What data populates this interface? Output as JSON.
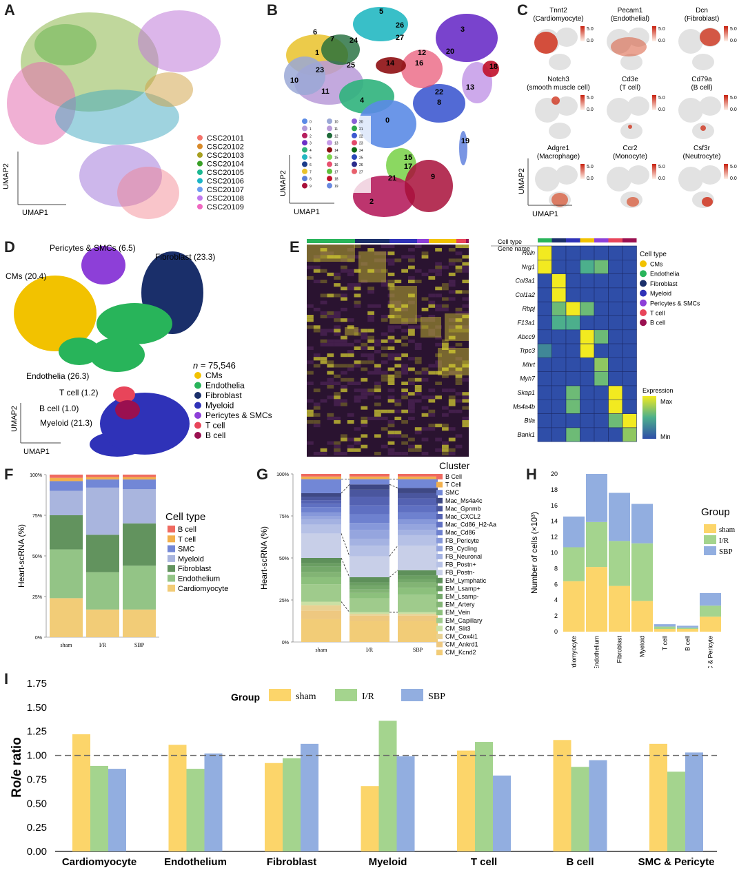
{
  "panel_labels": {
    "A": "A",
    "B": "B",
    "C": "C",
    "D": "D",
    "E": "E",
    "F": "F",
    "G": "G",
    "H": "H",
    "I": "I"
  },
  "axes": {
    "umap1": "UMAP1",
    "umap2": "UMAP2"
  },
  "panelA": {
    "legend": [
      {
        "label": "CSC20101",
        "color": "#f4736b"
      },
      {
        "label": "CSC20102",
        "color": "#d88a2a"
      },
      {
        "label": "CSC20103",
        "color": "#a8a020"
      },
      {
        "label": "CSC20104",
        "color": "#3aa028"
      },
      {
        "label": "CSC20105",
        "color": "#1cb892"
      },
      {
        "label": "CSC20106",
        "color": "#1bb5c6"
      },
      {
        "label": "CSC20107",
        "color": "#6b9cf0"
      },
      {
        "label": "CSC20108",
        "color": "#c178ee"
      },
      {
        "label": "CSC20109",
        "color": "#f068c0"
      }
    ]
  },
  "panelB": {
    "cluster_labels": [
      "0",
      "1",
      "2",
      "3",
      "4",
      "5",
      "6",
      "7",
      "8",
      "9",
      "10",
      "11",
      "12",
      "13",
      "14",
      "15",
      "16",
      "17",
      "18",
      "19",
      "20",
      "21",
      "22",
      "23",
      "24",
      "25",
      "26",
      "27"
    ],
    "legend_colors": [
      "#5b8be6",
      "#b39ad8",
      "#b61f5e",
      "#6a2fc8",
      "#2fb27c",
      "#24b8c2",
      "#1c3d8a",
      "#e9c22a",
      "#5b7fd8",
      "#a80f3a",
      "#9aa8d6",
      "#b99ad8",
      "#1f6b3a",
      "#c49ae8",
      "#8e0e12",
      "#7ed450",
      "#e85070",
      "#5ec03c",
      "#c0102a",
      "#6a8ae0",
      "#8a5fd6",
      "#2ea64c",
      "#3f5ad0",
      "#e24a6a",
      "#0e6b14",
      "#2948b8",
      "#2c2c8c",
      "#e8606c"
    ]
  },
  "panelC": {
    "genes": [
      {
        "gene": "Tnnt2",
        "cell": "(Cardiomyocyte)"
      },
      {
        "gene": "Pecam1",
        "cell": "(Endothelial)"
      },
      {
        "gene": "Dcn",
        "cell": "(Fibroblast)"
      },
      {
        "gene": "Notch3",
        "cell": "(smooth muscle cell)"
      },
      {
        "gene": "Cd3e",
        "cell": "(T cell)"
      },
      {
        "gene": "Cd79a",
        "cell": "(B cell)"
      },
      {
        "gene": "Adgre1",
        "cell": "(Macrophage)"
      },
      {
        "gene": "Ccr2",
        "cell": "(Monocyte)"
      },
      {
        "gene": "Csf3r",
        "cell": "(Neutrocyte)"
      }
    ],
    "scale_max": "5.0",
    "scale_min": "0.0"
  },
  "panelD": {
    "n_label": "n",
    "n_value": " = 75,546",
    "labels": {
      "cms": "CMs (20.4)",
      "pericytes": "Pericytes & SMCs (6.5)",
      "fibroblast": "Fibroblast (23.3)",
      "endothelia": "Endothelia (26.3)",
      "tcell": "T cell (1.2)",
      "bcell": "B cell (1.0)",
      "myeloid": "Myeloid (21.3)"
    },
    "legend": [
      {
        "label": "CMs",
        "color": "#f2c200"
      },
      {
        "label": "Endothelia",
        "color": "#28b45a"
      },
      {
        "label": "Fibroblast",
        "color": "#1a2f6a"
      },
      {
        "label": "Myeloid",
        "color": "#2f32b8"
      },
      {
        "label": "Pericytes & SMCs",
        "color": "#8d3fd8"
      },
      {
        "label": "T cell",
        "color": "#e8455a"
      },
      {
        "label": "B cell",
        "color": "#9a1050"
      }
    ]
  },
  "panelE": {
    "cell_type_header": "Cell type",
    "gene_name_header": "Gene name",
    "genes": [
      "Reln",
      "Nrg1",
      "Col3a1",
      "Col1a2",
      "Rbpj",
      "F13a1",
      "Abcc9",
      "Trpc3",
      "Mhrt",
      "Myh7",
      "Skap1",
      "Ms4a4b",
      "Btla",
      "Bank1"
    ],
    "legend_title": "Cell type",
    "legend": [
      {
        "label": "CMs",
        "color": "#f2c200"
      },
      {
        "label": "Endothelia",
        "color": "#28b45a"
      },
      {
        "label": "Fibroblast",
        "color": "#1a2f6a"
      },
      {
        "label": "Myeloid",
        "color": "#2f32b8"
      },
      {
        "label": "Pericytes & SMCs",
        "color": "#8d3fd8"
      },
      {
        "label": "T cell",
        "color": "#e8455a"
      },
      {
        "label": "B cell",
        "color": "#9a1050"
      }
    ],
    "expression_title": "Expression",
    "expr_max": "Max",
    "expr_min": "Min",
    "matrix": [
      [
        1,
        0,
        0,
        0,
        0,
        0,
        0
      ],
      [
        1,
        0,
        0,
        0.5,
        0.6,
        0,
        0
      ],
      [
        0,
        1,
        0,
        0,
        0,
        0,
        0
      ],
      [
        0,
        1,
        0,
        0,
        0,
        0,
        0
      ],
      [
        0,
        0.6,
        1,
        0.6,
        0,
        0,
        0
      ],
      [
        0,
        0.5,
        0.5,
        0,
        0,
        0,
        0
      ],
      [
        0,
        0,
        0,
        1,
        0.6,
        0,
        0
      ],
      [
        0.3,
        0,
        0,
        1,
        0,
        0,
        0
      ],
      [
        0,
        0,
        0,
        0,
        0.7,
        0,
        0
      ],
      [
        0,
        0,
        0,
        0,
        0.6,
        0,
        0
      ],
      [
        0,
        0,
        0.6,
        0,
        0,
        1,
        0
      ],
      [
        0,
        0,
        0.6,
        0,
        0,
        1,
        0
      ],
      [
        0,
        0,
        0,
        0,
        0,
        0.6,
        1
      ],
      [
        0,
        0,
        0.6,
        0,
        0,
        0,
        0.7
      ]
    ]
  },
  "chart_data": [
    {
      "id": "F",
      "type": "bar",
      "stacked": true,
      "title": "",
      "ylabel": "Heart-scRNA (%)",
      "xlabel": "",
      "categories": [
        "sham",
        "I/R",
        "SBP"
      ],
      "yticks": [
        "0%",
        "25%",
        "50%",
        "75%",
        "100%"
      ],
      "legend_title": "Cell type",
      "series": [
        {
          "name": "Cardiomyocyte",
          "color": "#f2cc77",
          "values": [
            24,
            17,
            17
          ]
        },
        {
          "name": "Endothelium",
          "color": "#93c486",
          "values": [
            30,
            23,
            27
          ]
        },
        {
          "name": "Fibroblast",
          "color": "#62935e",
          "values": [
            21,
            23,
            26
          ]
        },
        {
          "name": "Myeloid",
          "color": "#a9b5de",
          "values": [
            15,
            29,
            21
          ]
        },
        {
          "name": "SMC",
          "color": "#7287d6",
          "values": [
            6,
            5,
            6
          ]
        },
        {
          "name": "T cell",
          "color": "#f2b04c",
          "values": [
            2,
            1.5,
            1.5
          ]
        },
        {
          "name": "B cell",
          "color": "#ef6a60",
          "values": [
            2,
            1.5,
            1.5
          ]
        }
      ],
      "legend_order": [
        "B cell",
        "T cell",
        "SMC",
        "Myeloid",
        "Fibroblast",
        "Endothelium",
        "Cardiomyocyte"
      ]
    },
    {
      "id": "G",
      "type": "bar",
      "stacked": true,
      "title": "",
      "ylabel": "Heart-scRNA (%)",
      "xlabel": "",
      "categories": [
        "sham",
        "I/R",
        "SBP"
      ],
      "yticks": [
        "0%",
        "25%",
        "50%",
        "75%",
        "100%"
      ],
      "legend_title": "Cluster",
      "series": [
        {
          "name": "CM_Kcnd2",
          "color": "#f2cc77",
          "values": [
            13,
            12,
            12
          ]
        },
        {
          "name": "CM_Ankrd1",
          "color": "#eec880",
          "values": [
            5,
            3,
            3
          ]
        },
        {
          "name": "CM_Cox4i1",
          "color": "#e9d192",
          "values": [
            3,
            1,
            1
          ]
        },
        {
          "name": "CM_Slit3",
          "color": "#cbe0a4",
          "values": [
            2,
            1,
            1
          ]
        },
        {
          "name": "EM_Capillary",
          "color": "#9fcb8c",
          "values": [
            10,
            8,
            10
          ]
        },
        {
          "name": "EM_Vein",
          "color": "#8cc07c",
          "values": [
            4,
            3,
            4
          ]
        },
        {
          "name": "EM_Artery",
          "color": "#82b474",
          "values": [
            3,
            2,
            3
          ]
        },
        {
          "name": "EM_Lsamp-",
          "color": "#74a86a",
          "values": [
            3,
            2,
            2
          ]
        },
        {
          "name": "EM_Lsamp+",
          "color": "#6a9e62",
          "values": [
            2,
            2,
            2
          ]
        },
        {
          "name": "EM_Lymphatic",
          "color": "#5e905a",
          "values": [
            3,
            3,
            3
          ]
        },
        {
          "name": "FB_Postn-",
          "color": "#c8cfe8",
          "values": [
            14,
            12,
            14
          ]
        },
        {
          "name": "FB_Postn+",
          "color": "#b6c1e6",
          "values": [
            5,
            6,
            6
          ]
        },
        {
          "name": "FB_Neuronal",
          "color": "#a4b2e2",
          "values": [
            3,
            4,
            3
          ]
        },
        {
          "name": "FB_Cycling",
          "color": "#95a5de",
          "values": [
            2,
            5,
            3
          ]
        },
        {
          "name": "FB_Pericyte",
          "color": "#8698da",
          "values": [
            2,
            4,
            3
          ]
        },
        {
          "name": "Mac_Cd86",
          "color": "#6e81cf",
          "values": [
            3,
            5,
            4
          ]
        },
        {
          "name": "Mac_Cd86_H2-Aa",
          "color": "#5f70c2",
          "values": [
            2,
            5,
            4
          ]
        },
        {
          "name": "Mac_CXCL2",
          "color": "#5462b2",
          "values": [
            2,
            5,
            4
          ]
        },
        {
          "name": "Mac_Gpnmb",
          "color": "#4a569e",
          "values": [
            2,
            4,
            3
          ]
        },
        {
          "name": "Mac_Ms4a4c",
          "color": "#3e4884",
          "values": [
            2,
            3,
            3
          ]
        },
        {
          "name": "SMC",
          "color": "#7287d6",
          "values": [
            8,
            3,
            5
          ]
        },
        {
          "name": "T Cell",
          "color": "#f2b04c",
          "values": [
            1.5,
            1.5,
            1.5
          ]
        },
        {
          "name": "B Cell",
          "color": "#ef6a60",
          "values": [
            1.5,
            1.5,
            1.5
          ]
        }
      ],
      "legend_order": [
        "B Cell",
        "T Cell",
        "SMC",
        "Mac_Ms4a4c",
        "Mac_Gpnmb",
        "Mac_CXCL2",
        "Mac_Cd86_H2-Aa",
        "Mac_Cd86",
        "FB_Pericyte",
        "FB_Cycling",
        "FB_Neuronal",
        "FB_Postn+",
        "FB_Postn-",
        "EM_Lymphatic",
        "EM_Lsamp+",
        "EM_Lsamp-",
        "EM_Artery",
        "EM_Vein",
        "EM_Capillary",
        "CM_Slit3",
        "CM_Cox4i1",
        "CM_Ankrd1",
        "CM_Kcnd2"
      ]
    },
    {
      "id": "H",
      "type": "bar",
      "stacked": true,
      "title": "",
      "ylabel": "Number of cells (×10³)",
      "xlabel": "",
      "categories": [
        "Cardiomyocyte",
        "Endothelium",
        "Fibroblast",
        "Myeloid",
        "T cell",
        "B cell",
        "SMC & Pericyte"
      ],
      "ylim": [
        0,
        20
      ],
      "yticks": [
        0,
        2,
        4,
        6,
        8,
        10,
        12,
        14,
        16,
        18,
        20
      ],
      "legend_title": "Group",
      "series": [
        {
          "name": "sham",
          "color": "#fcd56a",
          "values": [
            6.4,
            8.2,
            5.8,
            3.9,
            0.35,
            0.35,
            1.9
          ]
        },
        {
          "name": "I/R",
          "color": "#a4d48e",
          "values": [
            4.3,
            5.7,
            5.7,
            7.3,
            0.3,
            0.15,
            1.4
          ]
        },
        {
          "name": "SBP",
          "color": "#92aee0",
          "values": [
            3.9,
            6.1,
            6.1,
            5.0,
            0.3,
            0.25,
            1.6
          ]
        }
      ]
    },
    {
      "id": "I",
      "type": "bar",
      "title": "",
      "ylabel": "Ro/e ratio",
      "xlabel": "",
      "categories": [
        "Cardiomyocyte",
        "Endothelium",
        "Fibroblast",
        "Myeloid",
        "T cell",
        "B cell",
        "SMC & Pericyte"
      ],
      "ylim": [
        0,
        1.75
      ],
      "yticks": [
        "0.00",
        "0.25",
        "0.50",
        "0.75",
        "1.00",
        "1.25",
        "1.50",
        "1.75"
      ],
      "reference_line": 1.0,
      "legend_title": "Group",
      "series": [
        {
          "name": "sham",
          "color": "#fcd56a",
          "values": [
            1.22,
            1.11,
            0.92,
            0.68,
            1.05,
            1.16,
            1.12
          ]
        },
        {
          "name": "I/R",
          "color": "#a4d48e",
          "values": [
            0.89,
            0.86,
            0.97,
            1.36,
            1.14,
            0.88,
            0.83
          ]
        },
        {
          "name": "SBP",
          "color": "#92aee0",
          "values": [
            0.86,
            1.02,
            1.12,
            0.99,
            0.79,
            0.95,
            1.03
          ]
        }
      ]
    }
  ]
}
